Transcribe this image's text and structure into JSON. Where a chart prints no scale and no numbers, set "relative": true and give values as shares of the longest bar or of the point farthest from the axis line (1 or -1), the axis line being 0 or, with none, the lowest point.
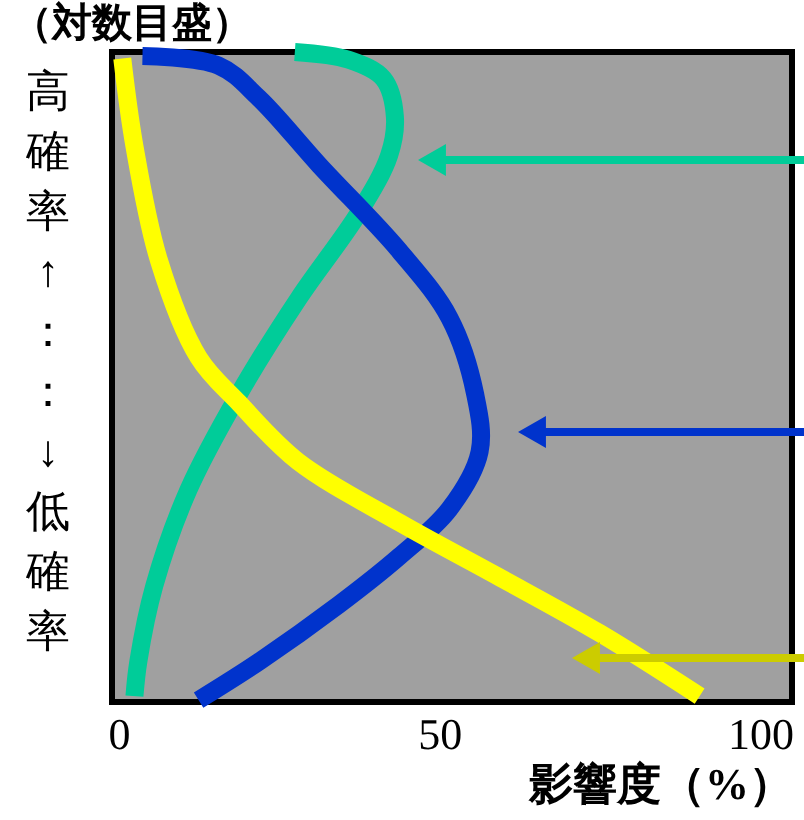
{
  "chart_data": {
    "type": "line",
    "title": "（対数目盛）",
    "xlabel": "影響度（%）",
    "ylabel": "高確率↑：：↓低確率",
    "relative": true,
    "xlim": [
      -1,
      105
    ],
    "xticks": [
      0,
      50,
      100
    ],
    "grid": false,
    "legend": false,
    "series": [
      {
        "color": "#00cc99",
        "x": [
          27.5,
          35.9,
          41.3,
          43.1,
          42.2,
          37.5,
          28.1,
          18.8,
          10.9,
          5.6,
          3.1,
          2.5
        ],
        "values": [
          1.0,
          0.988,
          0.959,
          0.9,
          0.841,
          0.753,
          0.621,
          0.474,
          0.326,
          0.179,
          0.062,
          0.009
        ]
      },
      {
        "color": "#0033cc",
        "x": [
          3.75,
          15.6,
          21.9,
          31.3,
          43.8,
          51.6,
          55.6,
          56.3,
          51.6,
          43.8,
          34.4,
          21.9,
          12.5
        ],
        "values": [
          0.994,
          0.979,
          0.929,
          0.826,
          0.694,
          0.591,
          0.474,
          0.385,
          0.297,
          0.224,
          0.15,
          0.062,
          0.003
        ]
      },
      {
        "color": "#ffff00",
        "x": [
          0.6,
          2.5,
          6.3,
          12.5,
          18.8,
          28,
          44,
          59,
          75,
          90.6
        ],
        "values": [
          0.99,
          0.855,
          0.68,
          0.53,
          0.46,
          0.37,
          0.275,
          0.194,
          0.106,
          0.009
        ]
      }
    ]
  }
}
